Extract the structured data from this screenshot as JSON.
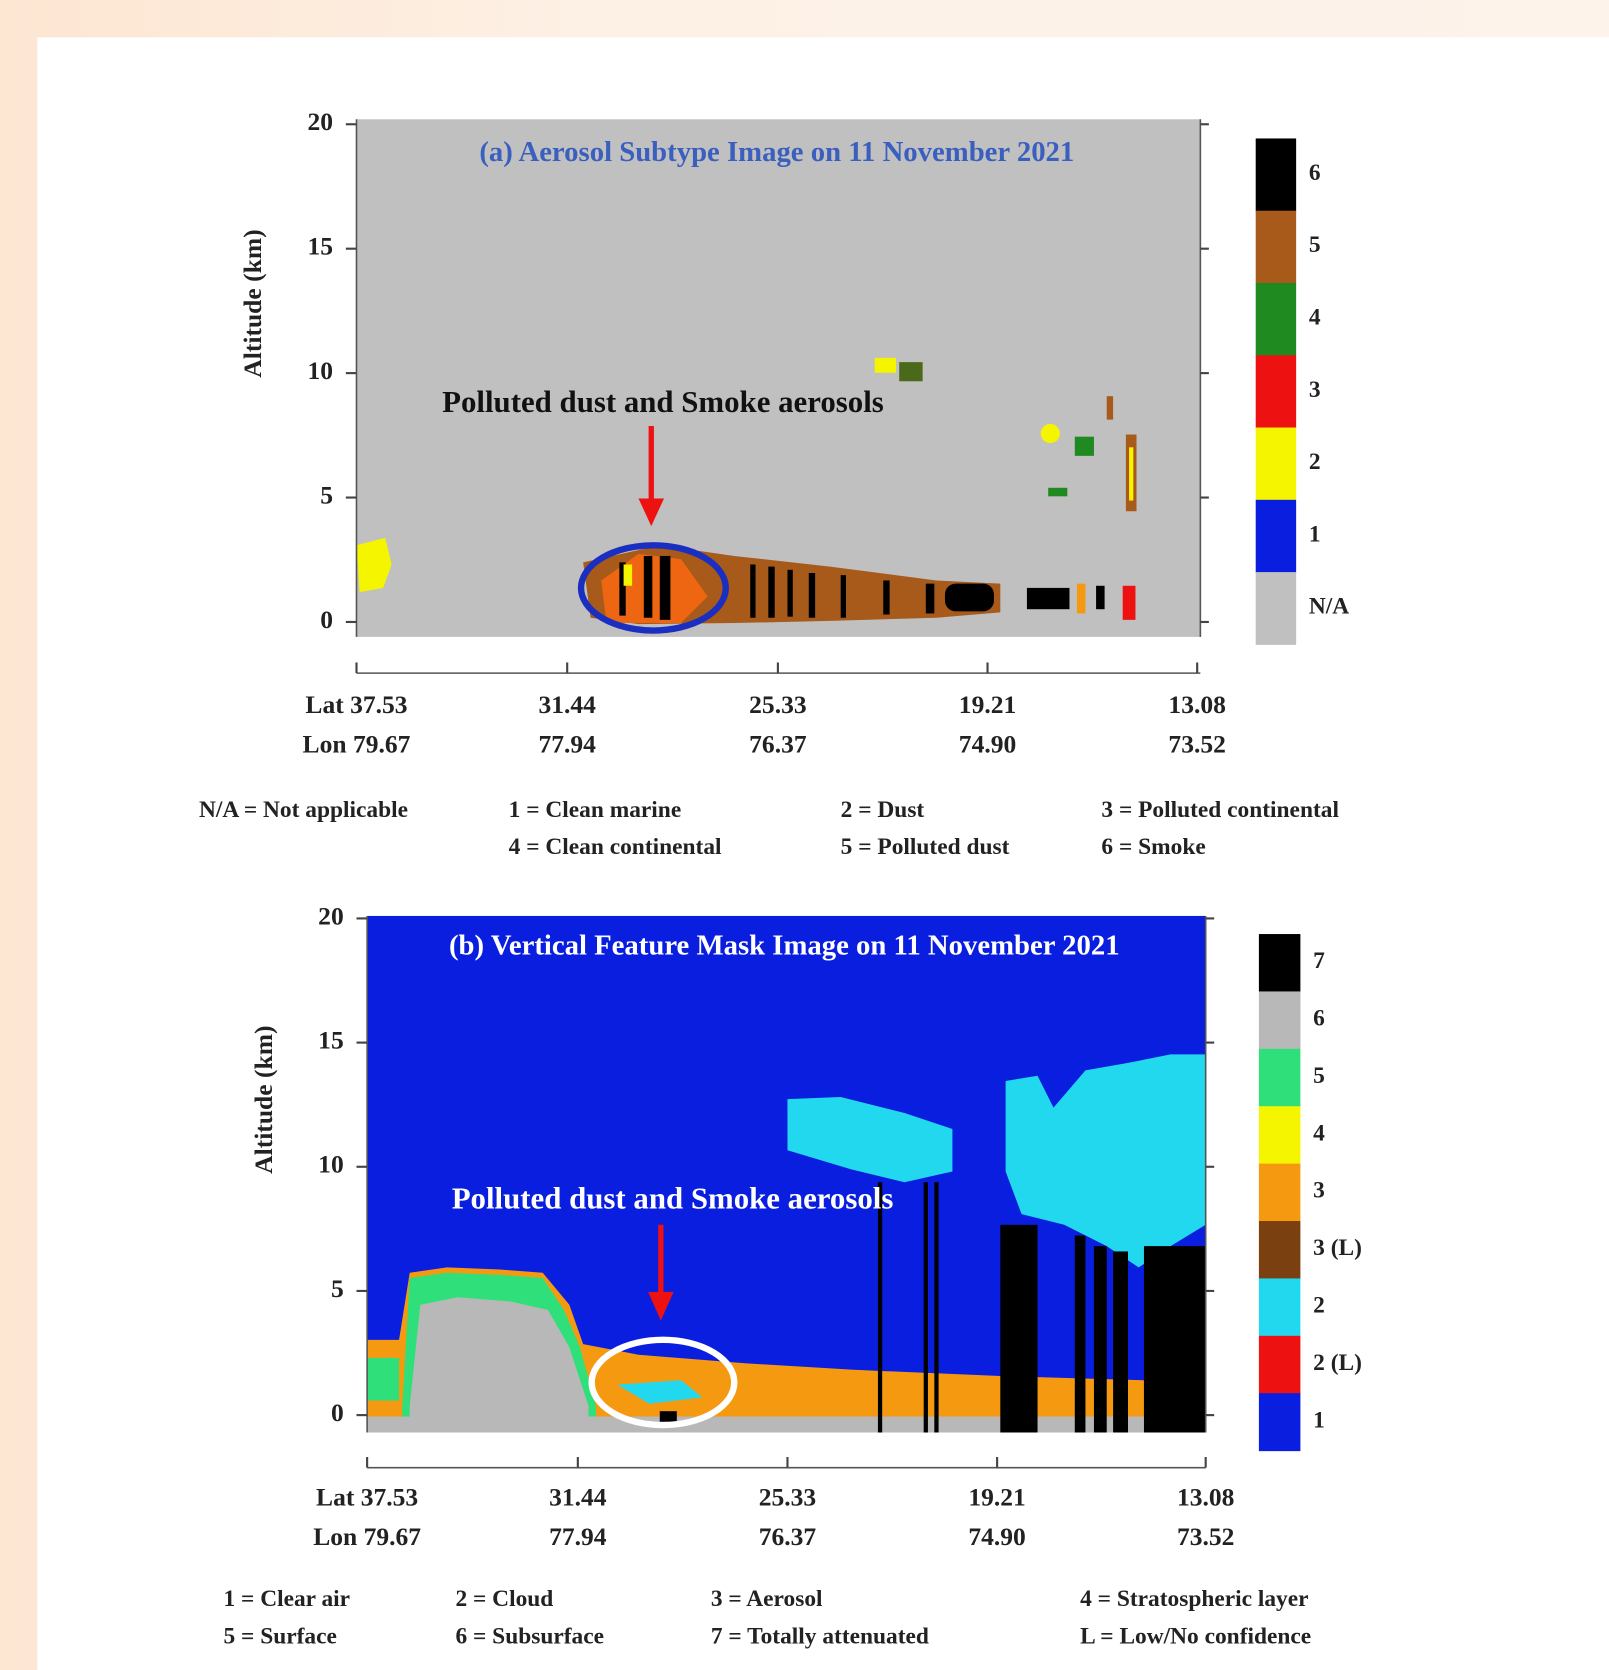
{
  "panels": [
    {
      "title": "(a) Aerosol Subtype Image on 11 November 2021",
      "annotation": "Polluted dust and Smoke aerosols",
      "y_label": "Altitude (km)",
      "ylim": [
        -0.6,
        20.2
      ],
      "yticks": [
        0,
        5,
        10,
        15,
        20
      ],
      "x_lat": [
        "Lat 37.53",
        "31.44",
        "25.33",
        "19.21",
        "13.08"
      ],
      "x_lon": [
        "Lon 79.67",
        "77.94",
        "76.37",
        "74.90",
        "73.52"
      ],
      "colorbar": [
        {
          "label": "6",
          "color": "#000000"
        },
        {
          "label": "5",
          "color": "#a85a1a"
        },
        {
          "label": "4",
          "color": "#1f8a1f"
        },
        {
          "label": "3",
          "color": "#ee1111"
        },
        {
          "label": "2",
          "color": "#f5f500"
        },
        {
          "label": "1",
          "color": "#0a1ee0"
        },
        {
          "label": "N/A",
          "color": "#c0c0c0"
        }
      ],
      "legend": [
        "N/A = Not applicable",
        "1 = Clean marine",
        "2 = Dust",
        "3 = Polluted continental",
        "4 = Clean continental",
        "5 = Polluted dust",
        "6 = Smoke"
      ]
    },
    {
      "title": "(b) Vertical Feature Mask Image on 11 November 2021",
      "annotation": "Polluted dust and Smoke aerosols",
      "y_label": "Altitude (km)",
      "ylim": [
        -0.7,
        20.1
      ],
      "yticks": [
        0,
        5,
        10,
        15,
        20
      ],
      "x_lat": [
        "Lat 37.53",
        "31.44",
        "25.33",
        "19.21",
        "13.08"
      ],
      "x_lon": [
        "Lon 79.67",
        "77.94",
        "76.37",
        "74.90",
        "73.52"
      ],
      "colorbar": [
        {
          "label": "7",
          "color": "#000000"
        },
        {
          "label": "6",
          "color": "#b8b8b8"
        },
        {
          "label": "5",
          "color": "#2fe07a"
        },
        {
          "label": "4",
          "color": "#f5f500"
        },
        {
          "label": "3",
          "color": "#f59a10"
        },
        {
          "label": "3 (L)",
          "color": "#7a4010"
        },
        {
          "label": "2",
          "color": "#22d8ee"
        },
        {
          "label": "2 (L)",
          "color": "#ee1111"
        },
        {
          "label": "1",
          "color": "#0a1ee0"
        }
      ],
      "legend": [
        "1 = Clear air",
        "2 = Cloud",
        "3 = Aerosol",
        "4 = Stratospheric layer",
        "5 = Surface",
        "6 = Subsurface",
        "7 = Totally attenuated",
        "L = Low/No confidence"
      ]
    }
  ]
}
